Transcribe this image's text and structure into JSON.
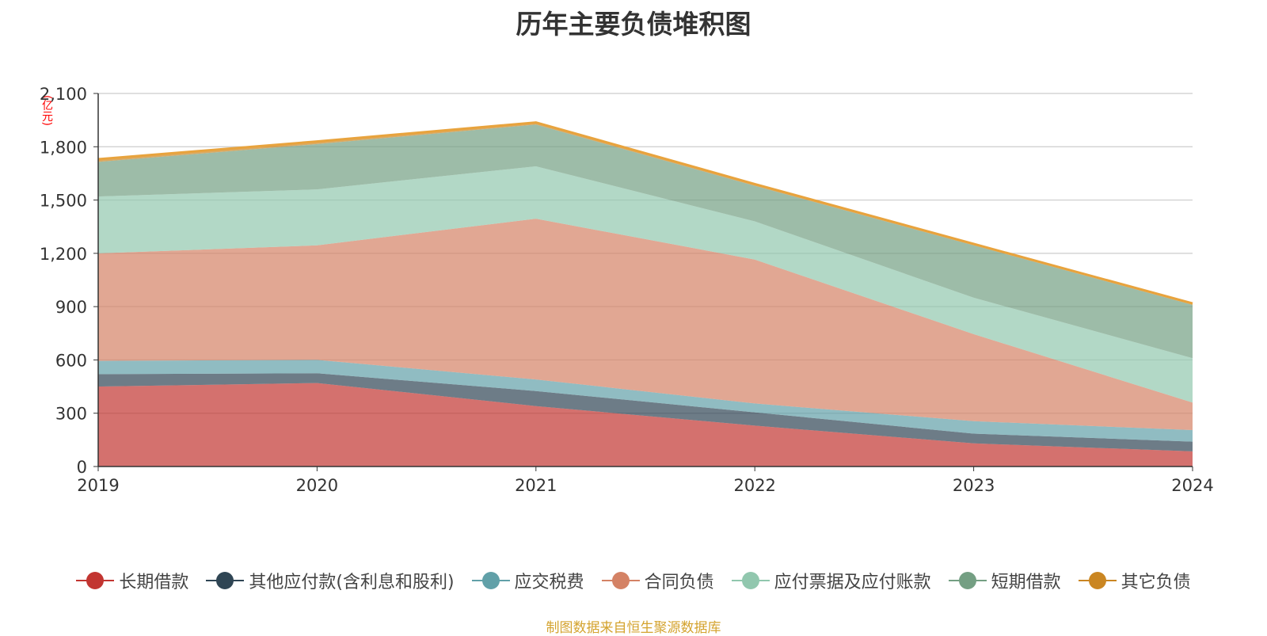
{
  "chart_data": {
    "type": "area",
    "stacked": true,
    "title": "历年主要负债堆积图",
    "unit_label": "(亿元)",
    "x": [
      "2019",
      "2020",
      "2021",
      "2022",
      "2023",
      "2024"
    ],
    "ylim": [
      0,
      2100
    ],
    "yticks": [
      0,
      300,
      600,
      900,
      1200,
      1500,
      1800,
      2100
    ],
    "ytick_labels": [
      "0",
      "300",
      "600",
      "900",
      "1,200",
      "1,500",
      "1,800",
      "2,100"
    ],
    "grid": true,
    "legend_position": "bottom",
    "series": [
      {
        "name": "长期借款",
        "color": "#c23531",
        "values": [
          450,
          470,
          340,
          230,
          130,
          85
        ]
      },
      {
        "name": "其他应付款(含利息和股利)",
        "color": "#2f4554",
        "values": [
          70,
          55,
          85,
          75,
          55,
          55
        ]
      },
      {
        "name": "应交税费",
        "color": "#61a0a8",
        "values": [
          75,
          75,
          65,
          50,
          70,
          65
        ]
      },
      {
        "name": "合同负债",
        "color": "#d48265",
        "values": [
          605,
          645,
          905,
          810,
          490,
          155
        ]
      },
      {
        "name": "应付票据及应付账款",
        "color": "#91c7ae",
        "values": [
          320,
          315,
          295,
          215,
          205,
          250
        ]
      },
      {
        "name": "短期借款",
        "color": "#749f83",
        "values": [
          195,
          255,
          235,
          200,
          295,
          300
        ]
      },
      {
        "name": "其它负债",
        "color": "#ca8622",
        "values": [
          15,
          15,
          12,
          10,
          8,
          8
        ]
      }
    ]
  },
  "source_text": "制图数据来自恒生聚源数据库"
}
